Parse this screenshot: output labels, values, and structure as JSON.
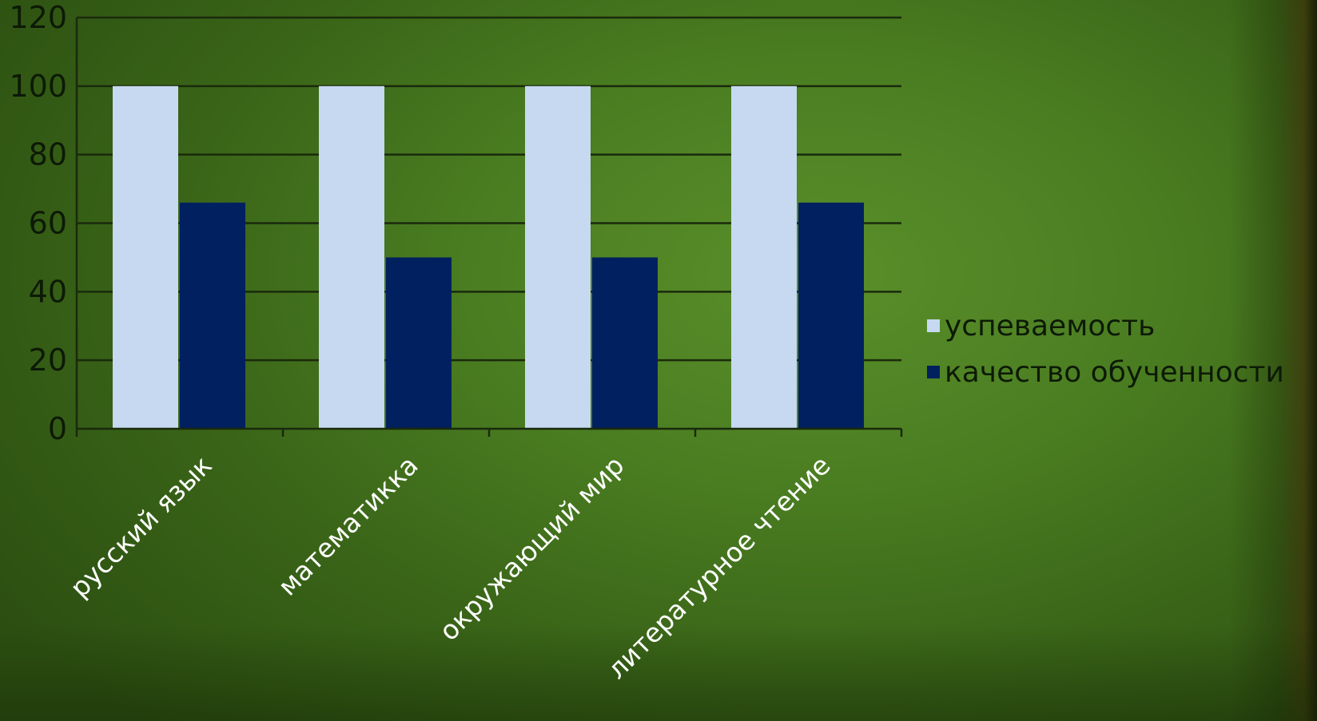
{
  "colors": {
    "background": "#4a7d21",
    "series_1": "#c6d9f1",
    "series_2": "#002060",
    "gridline": "#1a2a0c"
  },
  "chart_data": {
    "type": "bar",
    "title": "",
    "xlabel": "",
    "ylabel": "",
    "ylim": [
      0,
      120
    ],
    "yticks": [
      0,
      20,
      40,
      60,
      80,
      100,
      120
    ],
    "grid": true,
    "legend_position": "right",
    "categories": [
      "русский язык",
      "математикка",
      "окружающий мир",
      "литературное чтение"
    ],
    "series": [
      {
        "name": "успеваемость",
        "values": [
          100,
          100,
          100,
          100
        ]
      },
      {
        "name": "качество обученности",
        "values": [
          66,
          50,
          50,
          66
        ]
      }
    ]
  }
}
